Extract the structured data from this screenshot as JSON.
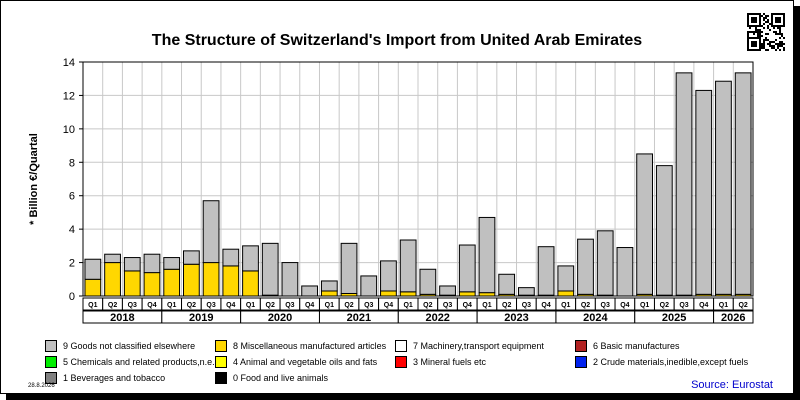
{
  "title": "The Structure of Switzerland's Import from United Arab Emirates",
  "date_stamp": "28.8.2026",
  "source": "Source: Eurostat",
  "chart_data": {
    "type": "bar",
    "stacked": true,
    "title": "The Structure of Switzerland's Import from United Arab Emirates",
    "ylabel": "* Billion €/Quartal",
    "xlabel": "",
    "ylim": [
      0,
      14
    ],
    "yticks": [
      0,
      2,
      4,
      6,
      8,
      10,
      12,
      14
    ],
    "grid": true,
    "legend_position": "bottom",
    "categories": [
      "Q1",
      "Q2",
      "Q3",
      "Q4",
      "Q1",
      "Q2",
      "Q3",
      "Q4",
      "Q1",
      "Q2",
      "Q3",
      "Q4",
      "Q1",
      "Q2",
      "Q3",
      "Q4",
      "Q1",
      "Q2",
      "Q3",
      "Q4",
      "Q1",
      "Q2",
      "Q3",
      "Q4",
      "Q1",
      "Q2",
      "Q3",
      "Q4",
      "Q1",
      "Q2",
      "Q3",
      "Q4",
      "Q1",
      "Q2"
    ],
    "years": [
      {
        "label": "2018",
        "count": 4
      },
      {
        "label": "2019",
        "count": 4
      },
      {
        "label": "2020",
        "count": 4
      },
      {
        "label": "2021",
        "count": 4
      },
      {
        "label": "2022",
        "count": 4
      },
      {
        "label": "2023",
        "count": 4
      },
      {
        "label": "2024",
        "count": 4
      },
      {
        "label": "2025",
        "count": 4
      },
      {
        "label": "2026",
        "count": 2
      }
    ],
    "series": [
      {
        "name": "0 Food and live animals",
        "color": "#000000",
        "values": [
          0,
          0,
          0,
          0,
          0,
          0,
          0,
          0,
          0,
          0,
          0,
          0,
          0,
          0,
          0,
          0,
          0,
          0,
          0,
          0,
          0,
          0,
          0,
          0,
          0,
          0,
          0,
          0,
          0,
          0,
          0,
          0,
          0,
          0
        ]
      },
      {
        "name": "4 Animal and vegetable oils and fats",
        "color": "#ffff00",
        "values": [
          0,
          0,
          0,
          0,
          0,
          0,
          0,
          0,
          0,
          0,
          0,
          0,
          0,
          0,
          0,
          0,
          0,
          0,
          0,
          0,
          0,
          0,
          0,
          0,
          0,
          0,
          0,
          0,
          0,
          0,
          0,
          0,
          0,
          0
        ]
      },
      {
        "name": "5 Chemicals and related products,n.e.s.",
        "color": "#00ee00",
        "values": [
          0,
          0,
          0,
          0,
          0,
          0,
          0,
          0,
          0,
          0,
          0,
          0,
          0,
          0,
          0,
          0,
          0,
          0,
          0,
          0,
          0,
          0,
          0,
          0,
          0,
          0,
          0,
          0,
          0,
          0,
          0,
          0,
          0,
          0
        ]
      },
      {
        "name": "8 Miscellaneous manufactured articles",
        "color": "#ffd700",
        "values": [
          1.0,
          2.0,
          1.5,
          1.4,
          1.6,
          1.9,
          2.0,
          1.8,
          1.5,
          0.05,
          0,
          0,
          0.3,
          0.15,
          0,
          0.3,
          0.25,
          0.1,
          0.05,
          0.25,
          0.2,
          0.1,
          0.05,
          0.05,
          0.3,
          0.1,
          0.05,
          0,
          0.1,
          0.05,
          0.05,
          0.1,
          0.1,
          0.1
        ]
      },
      {
        "name": "6 Basic manufactures",
        "color": "#b22222",
        "values": [
          0,
          0,
          0,
          0,
          0,
          0,
          0,
          0,
          0,
          0,
          0,
          0,
          0,
          0,
          0,
          0,
          0,
          0,
          0,
          0,
          0,
          0,
          0,
          0,
          0,
          0,
          0,
          0,
          0,
          0,
          0,
          0,
          0,
          0
        ]
      },
      {
        "name": "7 Machinery,transport equipment",
        "color": "#ffffff",
        "values": [
          0,
          0,
          0,
          0,
          0,
          0,
          0,
          0,
          0,
          0,
          0,
          0,
          0,
          0,
          0,
          0,
          0,
          0,
          0,
          0,
          0,
          0,
          0,
          0,
          0,
          0,
          0,
          0,
          0,
          0,
          0,
          0,
          0,
          0
        ]
      },
      {
        "name": "3 Mineral fuels etc",
        "color": "#ff0000",
        "values": [
          0,
          0,
          0,
          0,
          0,
          0,
          0,
          0,
          0,
          0,
          0,
          0,
          0,
          0,
          0,
          0,
          0,
          0,
          0,
          0,
          0,
          0,
          0,
          0,
          0,
          0,
          0,
          0,
          0,
          0,
          0,
          0,
          0,
          0
        ]
      },
      {
        "name": "2 Crude materials,inedible,except fuels",
        "color": "#0022ee",
        "values": [
          0,
          0,
          0,
          0,
          0,
          0,
          0,
          0,
          0,
          0,
          0,
          0,
          0,
          0,
          0,
          0,
          0,
          0,
          0,
          0,
          0,
          0,
          0,
          0,
          0,
          0,
          0,
          0,
          0,
          0,
          0,
          0,
          0,
          0
        ]
      },
      {
        "name": "1 Beverages and tobacco",
        "color": "#808080",
        "values": [
          0,
          0,
          0,
          0,
          0,
          0,
          0,
          0,
          0,
          0,
          0,
          0,
          0,
          0,
          0,
          0,
          0,
          0,
          0,
          0,
          0,
          0,
          0,
          0,
          0,
          0,
          0,
          0,
          0,
          0,
          0,
          0,
          0,
          0
        ]
      },
      {
        "name": "9 Goods not classified elsewhere",
        "color": "#c0c0c0",
        "values": [
          1.2,
          0.5,
          0.8,
          1.1,
          0.7,
          0.8,
          3.7,
          1.0,
          1.5,
          3.1,
          2.0,
          0.6,
          0.6,
          3.0,
          1.2,
          1.8,
          3.1,
          1.5,
          0.55,
          2.8,
          4.5,
          1.2,
          0.45,
          2.9,
          1.5,
          3.3,
          3.85,
          2.9,
          8.4,
          7.75,
          13.3,
          12.2,
          12.75,
          13.25
        ]
      }
    ]
  },
  "legend": [
    {
      "name": "9 Goods not classified elsewhere",
      "color": "#c0c0c0"
    },
    {
      "name": "8 Miscellaneous manufactured articles",
      "color": "#ffd700"
    },
    {
      "name": "7 Machinery,transport equipment",
      "color": "#ffffff"
    },
    {
      "name": "6 Basic manufactures",
      "color": "#b22222"
    },
    {
      "name": "5 Chemicals and related products,n.e.s.",
      "color": "#00ee00"
    },
    {
      "name": "4 Animal and vegetable oils and fats",
      "color": "#ffff00"
    },
    {
      "name": "3 Mineral fuels etc",
      "color": "#ff0000"
    },
    {
      "name": "2 Crude materials,inedible,except fuels",
      "color": "#0022ee"
    },
    {
      "name": "1 Beverages and tobacco",
      "color": "#808080"
    },
    {
      "name": "0 Food and live animals",
      "color": "#000000"
    }
  ]
}
